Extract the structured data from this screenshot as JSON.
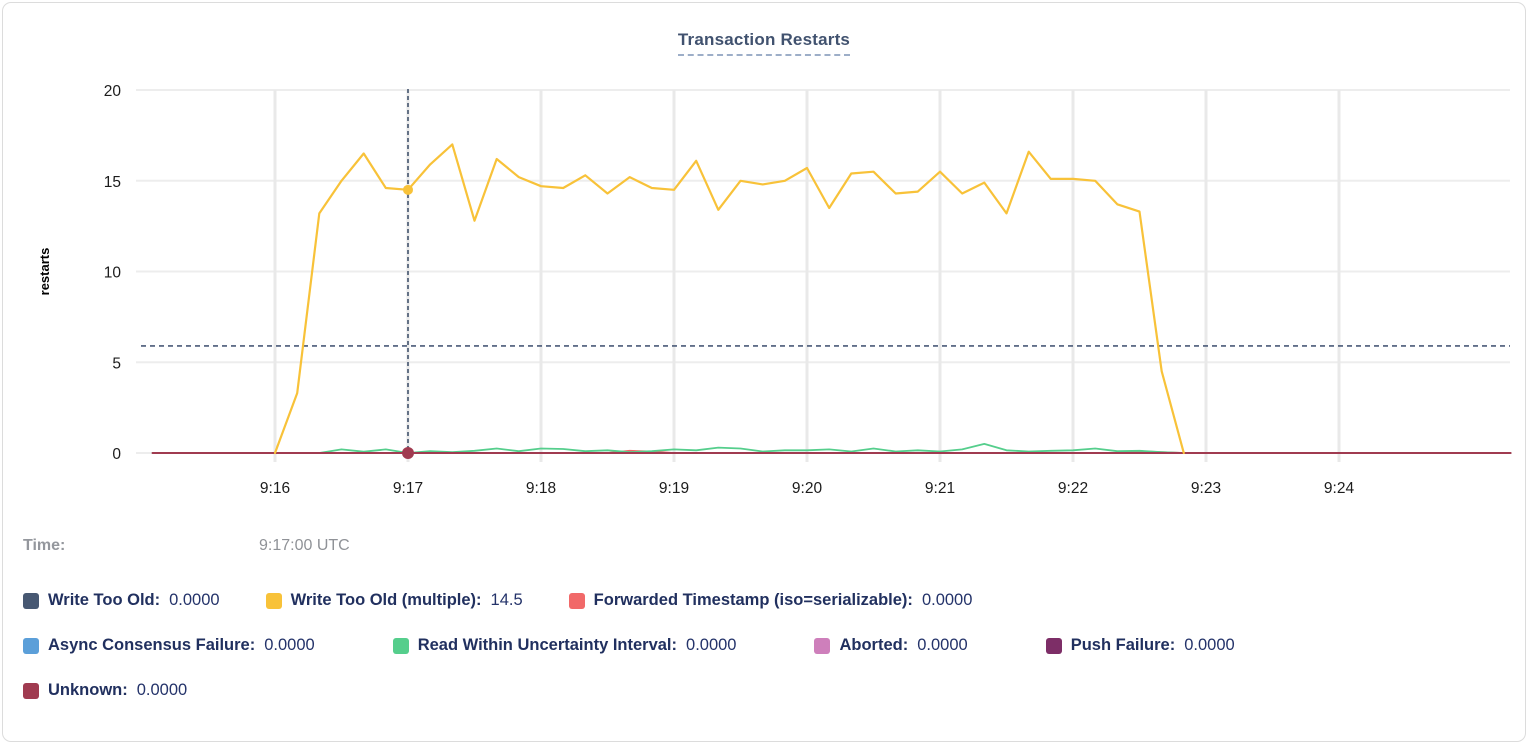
{
  "title": "Transaction Restarts",
  "time_row": {
    "label": "Time:",
    "value": "9:17:00 UTC"
  },
  "legend_rows": [
    [
      {
        "label": "Write Too Old",
        "value": "0.0000",
        "color": "#475872"
      },
      {
        "label": "Write Too Old (multiple)",
        "value": "14.5",
        "color": "#F8C239"
      },
      {
        "label": "Forwarded Timestamp (iso=serializable)",
        "value": "0.0000",
        "color": "#F16969"
      }
    ],
    [
      {
        "label": "Async Consensus Failure",
        "value": "0.0000",
        "color": "#5B9FD9"
      },
      {
        "label": "Read Within Uncertainty Interval",
        "value": "0.0000",
        "color": "#55CE8C"
      },
      {
        "label": "Aborted",
        "value": "0.0000",
        "color": "#CE7FBB"
      },
      {
        "label": "Push Failure",
        "value": "0.0000",
        "color": "#7D2E67"
      }
    ],
    [
      {
        "label": "Unknown",
        "value": "0.0000",
        "color": "#A03B50"
      }
    ]
  ],
  "chart_data": {
    "type": "line",
    "title": "Transaction Restarts",
    "ylabel": "restarts",
    "x_unit": "minutes after 9:00 UTC",
    "xlim": [
      15.08,
      25.29
    ],
    "ylim": [
      0,
      20
    ],
    "y_ticks": [
      0,
      5,
      10,
      15,
      20
    ],
    "x_ticks": [
      {
        "t": 16,
        "label": "9:16"
      },
      {
        "t": 17,
        "label": "9:17"
      },
      {
        "t": 18,
        "label": "9:18"
      },
      {
        "t": 19,
        "label": "9:19"
      },
      {
        "t": 20,
        "label": "9:20"
      },
      {
        "t": 21,
        "label": "9:21"
      },
      {
        "t": 22,
        "label": "9:22"
      },
      {
        "t": 23,
        "label": "9:23"
      },
      {
        "t": 24,
        "label": "9:24"
      }
    ],
    "grid": true,
    "legend_position": "bottom",
    "series": [
      {
        "name": "Write Too Old",
        "color": "#475872",
        "width": 1.6,
        "points": [
          [
            15.08,
            0
          ],
          [
            25.29,
            0
          ]
        ]
      },
      {
        "name": "Async Consensus Failure",
        "color": "#5B9FD9",
        "width": 1.6,
        "points": [
          [
            15.08,
            0
          ],
          [
            25.29,
            0
          ]
        ]
      },
      {
        "name": "Aborted",
        "color": "#CE7FBB",
        "width": 1.6,
        "points": [
          [
            15.08,
            0
          ],
          [
            25.29,
            0
          ]
        ]
      },
      {
        "name": "Push Failure",
        "color": "#7D2E67",
        "width": 1.6,
        "points": [
          [
            15.08,
            0
          ],
          [
            25.29,
            0
          ]
        ]
      },
      {
        "name": "Forwarded Timestamp (iso=serializable)",
        "color": "#F16969",
        "width": 1.8,
        "points": [
          [
            15.08,
            0
          ],
          [
            18.5,
            0
          ],
          [
            18.667,
            0.12
          ],
          [
            18.833,
            0.08
          ],
          [
            19.0,
            0
          ],
          [
            22.333,
            0
          ],
          [
            22.5,
            0.1
          ],
          [
            22.667,
            0.05
          ],
          [
            22.833,
            0
          ],
          [
            25.29,
            0
          ]
        ]
      },
      {
        "name": "Read Within Uncertainty Interval",
        "color": "#55CE8C",
        "width": 1.8,
        "points": [
          [
            15.08,
            0
          ],
          [
            16.333,
            0
          ],
          [
            16.5,
            0.2
          ],
          [
            16.667,
            0.07
          ],
          [
            16.833,
            0.2
          ],
          [
            17.0,
            0
          ],
          [
            17.167,
            0.1
          ],
          [
            17.333,
            0.05
          ],
          [
            17.5,
            0.12
          ],
          [
            17.667,
            0.25
          ],
          [
            17.833,
            0.1
          ],
          [
            18.0,
            0.25
          ],
          [
            18.167,
            0.22
          ],
          [
            18.333,
            0.1
          ],
          [
            18.5,
            0.15
          ],
          [
            18.667,
            0.05
          ],
          [
            18.833,
            0.1
          ],
          [
            19.0,
            0.2
          ],
          [
            19.167,
            0.15
          ],
          [
            19.333,
            0.3
          ],
          [
            19.5,
            0.25
          ],
          [
            19.667,
            0.08
          ],
          [
            19.833,
            0.15
          ],
          [
            20.0,
            0.15
          ],
          [
            20.167,
            0.2
          ],
          [
            20.333,
            0.08
          ],
          [
            20.5,
            0.25
          ],
          [
            20.667,
            0.08
          ],
          [
            20.833,
            0.15
          ],
          [
            21.0,
            0.08
          ],
          [
            21.167,
            0.2
          ],
          [
            21.333,
            0.5
          ],
          [
            21.5,
            0.15
          ],
          [
            21.667,
            0.08
          ],
          [
            21.833,
            0.12
          ],
          [
            22.0,
            0.15
          ],
          [
            22.167,
            0.25
          ],
          [
            22.333,
            0.1
          ],
          [
            22.5,
            0.12
          ],
          [
            22.667,
            0.05
          ],
          [
            22.833,
            0
          ],
          [
            25.29,
            0
          ]
        ]
      },
      {
        "name": "Unknown",
        "color": "#A03B50",
        "width": 2,
        "points": [
          [
            15.08,
            0
          ],
          [
            25.29,
            0
          ]
        ]
      },
      {
        "name": "Write Too Old (multiple)",
        "color": "#F8C239",
        "width": 2.2,
        "points": [
          [
            16.0,
            0
          ],
          [
            16.167,
            3.3
          ],
          [
            16.333,
            13.2
          ],
          [
            16.5,
            15.0
          ],
          [
            16.667,
            16.5
          ],
          [
            16.833,
            14.6
          ],
          [
            17.0,
            14.5
          ],
          [
            17.167,
            15.9
          ],
          [
            17.333,
            17.0
          ],
          [
            17.5,
            12.8
          ],
          [
            17.667,
            16.2
          ],
          [
            17.833,
            15.2
          ],
          [
            18.0,
            14.7
          ],
          [
            18.167,
            14.6
          ],
          [
            18.333,
            15.3
          ],
          [
            18.5,
            14.3
          ],
          [
            18.667,
            15.2
          ],
          [
            18.833,
            14.6
          ],
          [
            19.0,
            14.5
          ],
          [
            19.167,
            16.1
          ],
          [
            19.333,
            13.4
          ],
          [
            19.5,
            15.0
          ],
          [
            19.667,
            14.8
          ],
          [
            19.833,
            15.0
          ],
          [
            20.0,
            15.7
          ],
          [
            20.167,
            13.5
          ],
          [
            20.333,
            15.4
          ],
          [
            20.5,
            15.5
          ],
          [
            20.667,
            14.3
          ],
          [
            20.833,
            14.4
          ],
          [
            21.0,
            15.5
          ],
          [
            21.167,
            14.3
          ],
          [
            21.333,
            14.9
          ],
          [
            21.5,
            13.2
          ],
          [
            21.667,
            16.6
          ],
          [
            21.833,
            15.1
          ],
          [
            22.0,
            15.1
          ],
          [
            22.167,
            15.0
          ],
          [
            22.333,
            13.7
          ],
          [
            22.5,
            13.3
          ],
          [
            22.667,
            4.5
          ],
          [
            22.833,
            0
          ]
        ]
      }
    ],
    "hover": {
      "time": "9:17:00 UTC",
      "t": 17,
      "h_guide_value": 5.9,
      "crosshair_color": "#44546E",
      "points": [
        {
          "series": "Write Too Old (multiple)",
          "value": 14.5,
          "color": "#F8C239",
          "r": 5
        },
        {
          "series": "Unknown",
          "value": 0,
          "color": "#A03B50",
          "r": 6
        }
      ]
    }
  }
}
